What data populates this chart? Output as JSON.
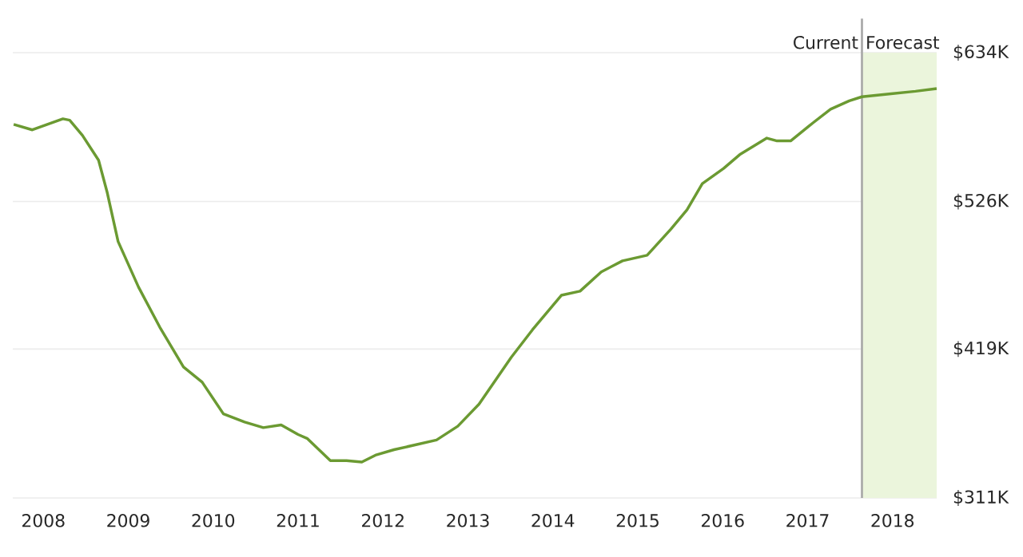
{
  "chart_data": {
    "type": "line",
    "x": [
      2007.65,
      2007.87,
      2008.23,
      2008.31,
      2008.46,
      2008.65,
      2008.75,
      2008.88,
      2009.12,
      2009.37,
      2009.65,
      2009.87,
      2010.12,
      2010.37,
      2010.59,
      2010.8,
      2011.0,
      2011.11,
      2011.38,
      2011.57,
      2011.75,
      2011.91,
      2012.13,
      2012.63,
      2012.88,
      2013.13,
      2013.51,
      2013.76,
      2014.1,
      2014.32,
      2014.57,
      2014.82,
      2015.11,
      2015.39,
      2015.58,
      2015.76,
      2016.01,
      2016.2,
      2016.52,
      2016.64,
      2016.8,
      2017.02,
      2017.27,
      2017.49,
      2017.64,
      2017.96,
      2018.27,
      2018.52
    ],
    "series": [
      {
        "color": "#6b9a32",
        "values": [
          582,
          578,
          586,
          585,
          574,
          556,
          533,
          497,
          464,
          435,
          406,
          395,
          372,
          366,
          362,
          364,
          357,
          354,
          338,
          338,
          337,
          342,
          346,
          353,
          363,
          379,
          413,
          433,
          458,
          461,
          475,
          483,
          487,
          506,
          520,
          539,
          550,
          560,
          572,
          570,
          570,
          581,
          593,
          599,
          602,
          604,
          606,
          608
        ]
      }
    ],
    "xlim": [
      2007.64,
      2018.52
    ],
    "xticks": [
      2008,
      2009,
      2010,
      2011,
      2012,
      2013,
      2014,
      2015,
      2016,
      2017,
      2018
    ],
    "ylim": [
      311,
      634
    ],
    "yticks": [
      {
        "value": 311,
        "label": "$311K"
      },
      {
        "value": 419,
        "label": "$419K"
      },
      {
        "value": 526,
        "label": "$526K"
      },
      {
        "value": 634,
        "label": "$634K"
      }
    ],
    "grid": "y",
    "marker": "none",
    "line_style": "solid",
    "ref_lines": [
      {
        "axis": "x",
        "value": 2017.64,
        "label": "Current",
        "color": "#a8a8a8"
      }
    ],
    "bands": [
      {
        "axis": "x",
        "from": 2017.64,
        "to": 2018.52,
        "label": "Forecast",
        "color": "#ebf5dc"
      }
    ]
  }
}
